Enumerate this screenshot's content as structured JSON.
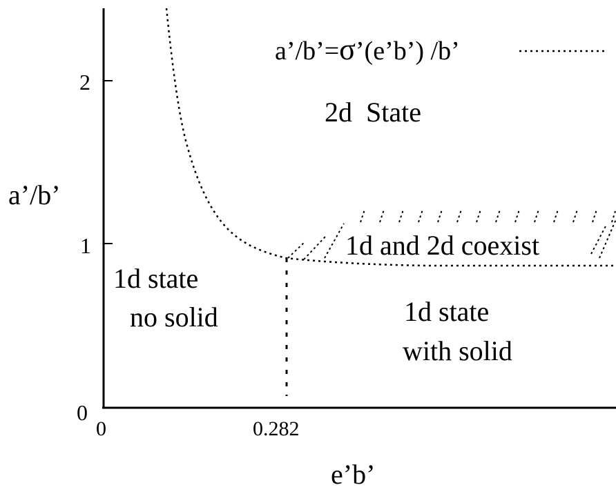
{
  "axes": {
    "x_label": "e’b’",
    "y_label": "a’/b’",
    "x_ticks": [
      "0",
      "0.282"
    ],
    "y_ticks": [
      "0",
      "1",
      "2"
    ]
  },
  "legend": {
    "prefix": "a’/b’=",
    "sigma": "σ",
    "suffix": "’(e’b’) /b’"
  },
  "regions": {
    "two_d": "2d  State",
    "coexist": "1d and 2d coexist",
    "no_solid_line1": "1d state",
    "no_solid_line2": "no solid",
    "with_solid_line1": "1d state",
    "with_solid_line2": "with solid"
  },
  "chart_data": {
    "type": "line",
    "xlabel": "e’b’",
    "ylabel": "a’/b’",
    "ylim": [
      0,
      2.4
    ],
    "x_ticks": [
      0,
      0.282
    ],
    "y_ticks": [
      0,
      1,
      2
    ],
    "critical_point": {
      "x": 0.282,
      "y": 0.92
    },
    "series": [
      {
        "name": "a’/b’=σ’(e’b’) /b’",
        "style": "dotted",
        "x": [
          0.1,
          0.12,
          0.14,
          0.17,
          0.2,
          0.24,
          0.282,
          0.4,
          0.5,
          0.6,
          0.8
        ],
        "y": [
          2.4,
          1.92,
          1.52,
          1.2,
          1.02,
          0.95,
          0.92,
          0.875,
          0.87,
          0.87,
          0.87
        ]
      }
    ],
    "boundary_vertical": {
      "x": 0.282,
      "y_from": 0,
      "y_to": 0.92,
      "style": "dotted"
    },
    "regions": [
      "2d  State",
      "1d and 2d coexist",
      "1d state no solid",
      "1d state with solid"
    ]
  }
}
